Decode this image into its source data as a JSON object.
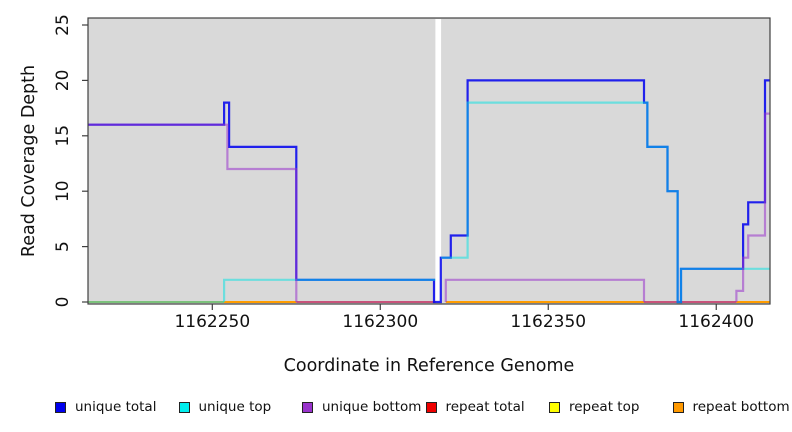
{
  "chart_data": {
    "type": "step-line",
    "xlabel": "Coordinate in Reference Genome",
    "ylabel": "Read Coverage Depth",
    "x_range": [
      1162213,
      1162416
    ],
    "y_range": [
      0,
      25
    ],
    "x_ticks": [
      1162250,
      1162300,
      1162350,
      1162400
    ],
    "y_ticks": [
      0,
      5,
      10,
      15,
      20,
      25
    ],
    "panel_bg": "#d9d9d9",
    "gap_band": {
      "x_start": 1162316.4,
      "x_end": 1162318.1,
      "color": "#ffffff"
    },
    "zero_segments": [
      {
        "from": 1162213,
        "to": 1162253.5,
        "color": "#7cc27c"
      },
      {
        "from": 1162253.5,
        "to": 1162275,
        "color": "#ff9d00"
      },
      {
        "from": 1162275,
        "to": 1162316.4,
        "color": "#c8537b"
      },
      {
        "from": 1162319.5,
        "to": 1162378.5,
        "color": "#ff9d00"
      },
      {
        "from": 1162378.5,
        "to": 1162406,
        "color": "#c8537b"
      },
      {
        "from": 1162406,
        "to": 1162416,
        "color": "#ff9d00"
      }
    ],
    "series": [
      {
        "name": "unique total",
        "color": "#0000ee",
        "opacity": 0.85,
        "paths": [
          [
            [
              1162213,
              16
            ],
            [
              1162253.5,
              16
            ],
            [
              1162253.5,
              18
            ],
            [
              1162255,
              18
            ],
            [
              1162255,
              14
            ],
            [
              1162275,
              14
            ],
            [
              1162275,
              2
            ],
            [
              1162316,
              2
            ],
            [
              1162316,
              0
            ],
            [
              1162318,
              0
            ],
            [
              1162318,
              4
            ],
            [
              1162321,
              4
            ],
            [
              1162321,
              6
            ],
            [
              1162326,
              6
            ],
            [
              1162326,
              20
            ],
            [
              1162378.5,
              20
            ],
            [
              1162378.5,
              18
            ],
            [
              1162379.5,
              18
            ],
            [
              1162379.5,
              14
            ],
            [
              1162385.5,
              14
            ],
            [
              1162385.5,
              10
            ],
            [
              1162388.5,
              10
            ],
            [
              1162388.5,
              0
            ],
            [
              1162389.5,
              0
            ],
            [
              1162389.5,
              3
            ],
            [
              1162408,
              3
            ],
            [
              1162408,
              7
            ],
            [
              1162409.5,
              7
            ],
            [
              1162409.5,
              9
            ],
            [
              1162414.5,
              9
            ],
            [
              1162414.5,
              20
            ],
            [
              1162416,
              20
            ]
          ]
        ]
      },
      {
        "name": "unique top",
        "color": "#00e4e4",
        "opacity": 0.5,
        "paths": [
          [
            [
              1162253.5,
              0
            ],
            [
              1162253.5,
              2
            ],
            [
              1162316.4,
              2
            ]
          ],
          [
            [
              1162318.1,
              4
            ],
            [
              1162326,
              4
            ],
            [
              1162326,
              18
            ],
            [
              1162379.5,
              18
            ],
            [
              1162379.5,
              14
            ],
            [
              1162385.5,
              14
            ],
            [
              1162385.5,
              10
            ],
            [
              1162388.5,
              10
            ],
            [
              1162388.5,
              0
            ],
            [
              1162389.5,
              0
            ],
            [
              1162389.5,
              3
            ],
            [
              1162416,
              3
            ]
          ]
        ]
      },
      {
        "name": "unique bottom",
        "color": "#9933cc",
        "opacity": 0.55,
        "paths": [
          [
            [
              1162213,
              16
            ],
            [
              1162254.5,
              16
            ],
            [
              1162254.5,
              12
            ],
            [
              1162275,
              12
            ],
            [
              1162275,
              0
            ]
          ],
          [
            [
              1162319.5,
              0
            ],
            [
              1162319.5,
              2
            ],
            [
              1162378.5,
              2
            ],
            [
              1162378.5,
              0
            ]
          ],
          [
            [
              1162406,
              0
            ],
            [
              1162406,
              1
            ],
            [
              1162408,
              1
            ],
            [
              1162408,
              4
            ],
            [
              1162409.5,
              4
            ],
            [
              1162409.5,
              6
            ],
            [
              1162414.5,
              6
            ],
            [
              1162414.5,
              17
            ],
            [
              1162416,
              17
            ]
          ]
        ]
      },
      {
        "name": "repeat total",
        "color": "#ee0000",
        "opacity": 1,
        "paths": []
      },
      {
        "name": "repeat top",
        "color": "#ffff00",
        "opacity": 1,
        "paths": []
      },
      {
        "name": "repeat bottom",
        "color": "#ff9d00",
        "opacity": 1,
        "paths": []
      }
    ],
    "legend": [
      {
        "label": "unique total",
        "color": "#0000ee"
      },
      {
        "label": "unique top",
        "color": "#00eeee"
      },
      {
        "label": "unique bottom",
        "color": "#9933cc"
      },
      {
        "label": "repeat total",
        "color": "#ee0000"
      },
      {
        "label": "repeat top",
        "color": "#ffff00"
      },
      {
        "label": "repeat bottom",
        "color": "#ff9900"
      }
    ]
  }
}
